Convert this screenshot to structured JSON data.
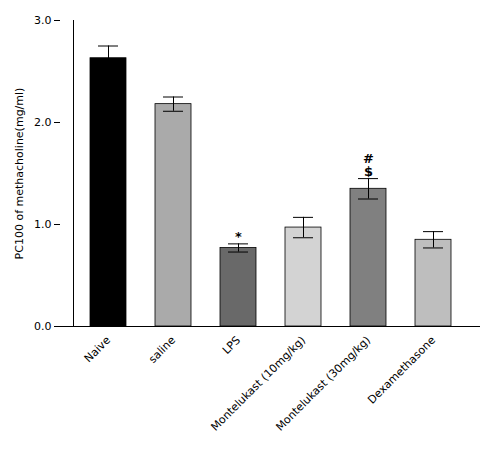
{
  "chart_data": {
    "type": "bar",
    "categories": [
      "Naive",
      "saline",
      "LPS",
      "Montelukast (10mg/kg)",
      "Montelukast (30mg/kg)",
      "Dexamethasone"
    ],
    "values": [
      2.63,
      2.18,
      0.77,
      0.97,
      1.35,
      0.85
    ],
    "errors": [
      0.12,
      0.07,
      0.04,
      0.1,
      0.1,
      0.08
    ],
    "colors": [
      "#000000",
      "#aaaaaa",
      "#696969",
      "#d3d3d3",
      "#808080",
      "#bebebe"
    ],
    "ylabel": "PC100 of methacholine(mg/ml)",
    "ylim": [
      0,
      3.0
    ],
    "yticks": [
      0,
      1,
      2,
      3
    ],
    "grid": false,
    "annotations": [
      {
        "category": "LPS",
        "text": "*"
      },
      {
        "category": "Montelukast (30mg/kg)",
        "text": "#"
      },
      {
        "category": "Montelukast (30mg/kg)",
        "text": "$"
      }
    ]
  }
}
